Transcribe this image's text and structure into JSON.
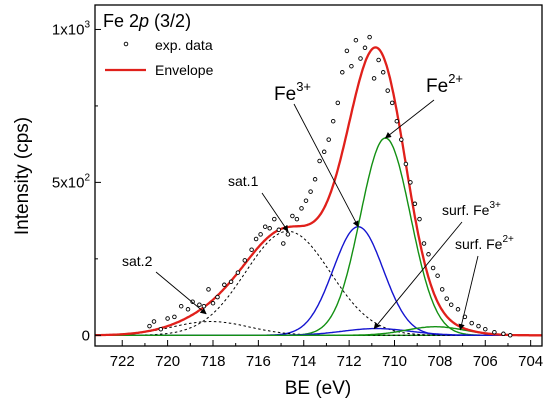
{
  "chart_data": {
    "type": "line",
    "title": "Fe 2p (3/2)",
    "title_parts": {
      "element": "Fe 2",
      "orbital": "p",
      "suffix": " (3/2)"
    },
    "xlabel": "BE (eV)",
    "ylabel": "Intensity (cps)",
    "xlim": [
      723.2,
      703.5
    ],
    "ylim": [
      -35,
      1080
    ],
    "x_reversed": true,
    "x_ticks": [
      722,
      720,
      718,
      716,
      714,
      712,
      710,
      708,
      706,
      704
    ],
    "y_ticks": [
      {
        "value": 0,
        "label": "0"
      },
      {
        "value": 500,
        "label": "5x10",
        "exp": "2"
      },
      {
        "value": 1000,
        "label": "1x10",
        "exp": "3"
      }
    ],
    "legend_position": "top-left",
    "legend": [
      {
        "label": "exp. data",
        "style": "open-circles"
      },
      {
        "label": "Envelope",
        "style": "line",
        "color": "#e0201b"
      }
    ],
    "components": [
      {
        "name": "Fe",
        "sup": "3+",
        "shape": "gaussian",
        "center": 711.6,
        "height": 355,
        "fwhm": 2.6,
        "color": "#1515d0"
      },
      {
        "name": "Fe",
        "sup": "2+",
        "shape": "gaussian",
        "center": 710.4,
        "height": 645,
        "fwhm": 2.6,
        "color": "#139013"
      },
      {
        "name": "sat.1",
        "shape": "gaussian",
        "center": 714.7,
        "height": 340,
        "fwhm": 4.4,
        "color": "#000000",
        "dashed": true
      },
      {
        "name": "sat.2",
        "shape": "gaussian",
        "center": 718.1,
        "height": 45,
        "fwhm": 4.0,
        "color": "#000000",
        "dashed": true
      },
      {
        "name": "surf. Fe",
        "sup": "3+",
        "shape": "gaussian",
        "center": 710.8,
        "height": 22,
        "fwhm": 3.5,
        "color": "#1515d0"
      },
      {
        "name": "surf. Fe",
        "sup": "2+",
        "shape": "gaussian",
        "center": 708.2,
        "height": 28,
        "fwhm": 3.0,
        "color": "#139013"
      }
    ],
    "baseline": {
      "value": 0,
      "color": "#139013"
    },
    "envelope": {
      "name": "Envelope",
      "color": "#e0201b"
    },
    "exp_data": {
      "name": "exp. data",
      "x": [
        720.8,
        720.6,
        720.3,
        720.0,
        719.7,
        719.4,
        719.1,
        718.9,
        718.6,
        718.4,
        718.2,
        718.0,
        717.8,
        717.5,
        717.2,
        716.9,
        716.6,
        716.3,
        716.1,
        715.9,
        715.7,
        715.5,
        715.3,
        715.1,
        714.9,
        714.7,
        714.5,
        714.3,
        714.1,
        713.9,
        713.7,
        713.5,
        713.3,
        713.1,
        712.9,
        712.7,
        712.5,
        712.3,
        712.1,
        711.9,
        711.7,
        711.5,
        711.3,
        711.1,
        710.9,
        710.7,
        710.5,
        710.3,
        710.1,
        709.9,
        709.7,
        709.5,
        709.3,
        709.1,
        708.9,
        708.7,
        708.5,
        708.3,
        708.1,
        707.9,
        707.7,
        707.5,
        707.2,
        706.9,
        706.6,
        706.3,
        706.0,
        705.6,
        705.2,
        704.9
      ],
      "y": [
        30,
        45,
        20,
        55,
        60,
        95,
        85,
        110,
        100,
        95,
        150,
        105,
        125,
        165,
        175,
        205,
        245,
        280,
        315,
        330,
        355,
        350,
        380,
        345,
        300,
        330,
        390,
        380,
        415,
        440,
        470,
        510,
        570,
        600,
        640,
        700,
        760,
        860,
        930,
        880,
        965,
        905,
        940,
        975,
        840,
        900,
        860,
        800,
        760,
        700,
        640,
        560,
        500,
        430,
        380,
        300,
        265,
        220,
        195,
        150,
        120,
        100,
        85,
        60,
        40,
        30,
        20,
        10,
        5,
        0
      ]
    },
    "annotations": [
      {
        "text": "Fe",
        "sup": "3+",
        "size": "large",
        "target_x": 711.6,
        "target_y": 355
      },
      {
        "text": "Fe",
        "sup": "2+",
        "size": "large",
        "target_x": 710.4,
        "target_y": 645
      },
      {
        "text": "sat.1",
        "size": "small",
        "target_x": 714.7,
        "target_y": 340
      },
      {
        "text": "sat.2",
        "size": "small",
        "target_x": 718.3,
        "target_y": 70
      },
      {
        "text": "surf. Fe",
        "sup": "3+",
        "size": "small",
        "target_x": 710.9,
        "target_y": 22
      },
      {
        "text": "surf. Fe",
        "sup": "2+",
        "size": "small",
        "target_x": 707.1,
        "target_y": 18
      }
    ]
  }
}
